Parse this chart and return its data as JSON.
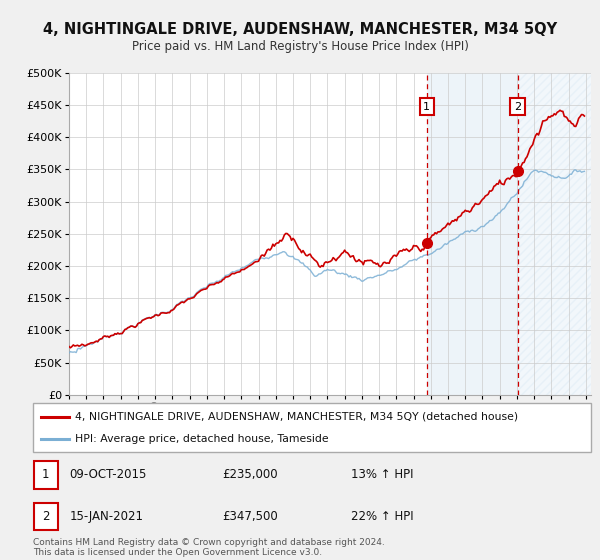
{
  "title": "4, NIGHTINGALE DRIVE, AUDENSHAW, MANCHESTER, M34 5QY",
  "subtitle": "Price paid vs. HM Land Registry's House Price Index (HPI)",
  "ylim": [
    0,
    500000
  ],
  "yticks": [
    0,
    50000,
    100000,
    150000,
    200000,
    250000,
    300000,
    350000,
    400000,
    450000,
    500000
  ],
  "ytick_labels": [
    "£0",
    "£50K",
    "£100K",
    "£150K",
    "£200K",
    "£250K",
    "£300K",
    "£350K",
    "£400K",
    "£450K",
    "£500K"
  ],
  "hpi_color": "#7bafd4",
  "price_color": "#cc0000",
  "marker_color": "#cc0000",
  "vline_color": "#cc0000",
  "grid_color": "#cccccc",
  "bg_color": "#f0f0f0",
  "chart_bg": "#ffffff",
  "shaded_color": "#d6e8f5",
  "hatched_color": "#e8f2fa",
  "transaction1_date": "09-OCT-2015",
  "transaction1_price": 235000,
  "transaction1_pct": "13%",
  "transaction2_date": "15-JAN-2021",
  "transaction2_price": 347500,
  "transaction2_pct": "22%",
  "legend_label_price": "4, NIGHTINGALE DRIVE, AUDENSHAW, MANCHESTER, M34 5QY (detached house)",
  "legend_label_hpi": "HPI: Average price, detached house, Tameside",
  "footer": "Contains HM Land Registry data © Crown copyright and database right 2024.\nThis data is licensed under the Open Government Licence v3.0.",
  "xlim_start": 1995.0,
  "xlim_end": 2025.3,
  "transaction1_x": 2015.77,
  "transaction2_x": 2021.04
}
